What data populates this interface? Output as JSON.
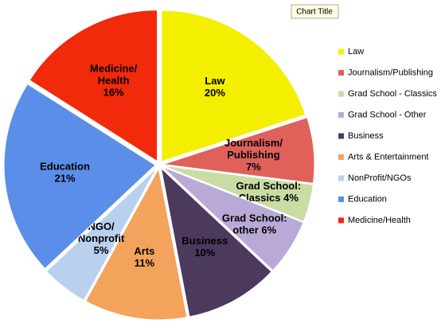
{
  "chart_data": {
    "type": "pie",
    "tooltip": "Chart Title",
    "categories": [
      "Law",
      "Journalism/Publishing",
      "Grad School - Classics",
      "Grad School - Other",
      "Business",
      "Arts & Entertainment",
      "NonProfit/NGOs",
      "Education",
      "Medicine/Health"
    ],
    "values": [
      20,
      7,
      4,
      6,
      10,
      11,
      5,
      21,
      16
    ],
    "value_labels": [
      "20%",
      "7%",
      "4%",
      "6%",
      "10%",
      "11%",
      "5%",
      "21%",
      "16%"
    ],
    "labels": [
      [
        "Law"
      ],
      [
        "Journalism/",
        "Publishing"
      ],
      [
        "Grad School:",
        "Classics"
      ],
      [
        "Grad School:",
        "other"
      ],
      [
        "Business"
      ],
      [
        "Arts"
      ],
      [
        "NGO/",
        "Nonprofit"
      ],
      [
        "Education"
      ],
      [
        "Medicine/",
        "Health"
      ]
    ],
    "colors": [
      "#f4ee00",
      "#e0605a",
      "#c8dca4",
      "#b9a9d6",
      "#4b3a5e",
      "#f3a35c",
      "#b9d1ef",
      "#5a8ee8",
      "#f02a0a"
    ],
    "legend": "right"
  }
}
